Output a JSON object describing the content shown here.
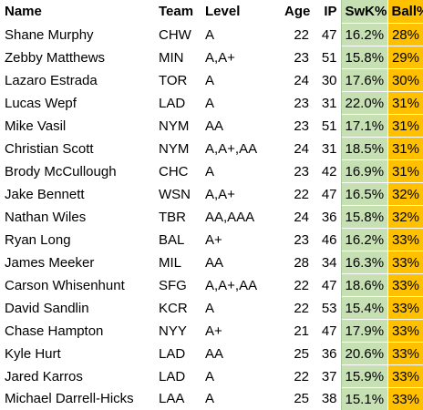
{
  "headers": [
    "Name",
    "Team",
    "Level",
    "Age",
    "IP",
    "SwK%",
    "Ball%"
  ],
  "rows": [
    {
      "name": "Shane Murphy",
      "team": "CHW",
      "level": "A",
      "age": "22",
      "ip": "47",
      "swk": "16.2%",
      "ball": "28%"
    },
    {
      "name": "Zebby Matthews",
      "team": "MIN",
      "level": "A,A+",
      "age": "23",
      "ip": "51",
      "swk": "15.8%",
      "ball": "29%"
    },
    {
      "name": "Lazaro Estrada",
      "team": "TOR",
      "level": "A",
      "age": "24",
      "ip": "30",
      "swk": "17.6%",
      "ball": "30%"
    },
    {
      "name": "Lucas Wepf",
      "team": "LAD",
      "level": "A",
      "age": "23",
      "ip": "31",
      "swk": "22.0%",
      "ball": "31%"
    },
    {
      "name": "Mike Vasil",
      "team": "NYM",
      "level": "AA",
      "age": "23",
      "ip": "51",
      "swk": "17.1%",
      "ball": "31%"
    },
    {
      "name": "Christian Scott",
      "team": "NYM",
      "level": "A,A+,AA",
      "age": "24",
      "ip": "31",
      "swk": "18.5%",
      "ball": "31%"
    },
    {
      "name": "Brody McCullough",
      "team": "CHC",
      "level": "A",
      "age": "23",
      "ip": "42",
      "swk": "16.9%",
      "ball": "31%"
    },
    {
      "name": "Jake Bennett",
      "team": "WSN",
      "level": "A,A+",
      "age": "22",
      "ip": "47",
      "swk": "16.5%",
      "ball": "32%"
    },
    {
      "name": "Nathan Wiles",
      "team": "TBR",
      "level": "AA,AAA",
      "age": "24",
      "ip": "36",
      "swk": "15.8%",
      "ball": "32%"
    },
    {
      "name": "Ryan Long",
      "team": "BAL",
      "level": "A+",
      "age": "23",
      "ip": "46",
      "swk": "16.2%",
      "ball": "33%"
    },
    {
      "name": "James Meeker",
      "team": "MIL",
      "level": "AA",
      "age": "28",
      "ip": "34",
      "swk": "16.3%",
      "ball": "33%"
    },
    {
      "name": "Carson Whisenhunt",
      "team": "SFG",
      "level": "A,A+,AA",
      "age": "22",
      "ip": "47",
      "swk": "18.6%",
      "ball": "33%"
    },
    {
      "name": "David Sandlin",
      "team": "KCR",
      "level": "A",
      "age": "22",
      "ip": "53",
      "swk": "15.4%",
      "ball": "33%"
    },
    {
      "name": "Chase Hampton",
      "team": "NYY",
      "level": "A+",
      "age": "21",
      "ip": "47",
      "swk": "17.9%",
      "ball": "33%"
    },
    {
      "name": "Kyle Hurt",
      "team": "LAD",
      "level": "AA",
      "age": "25",
      "ip": "36",
      "swk": "20.6%",
      "ball": "33%"
    },
    {
      "name": "Jared Karros",
      "team": "LAD",
      "level": "A",
      "age": "22",
      "ip": "37",
      "swk": "15.9%",
      "ball": "33%"
    },
    {
      "name": "Michael Darrell-Hicks",
      "team": "LAA",
      "level": "A",
      "age": "25",
      "ip": "38",
      "swk": "15.1%",
      "ball": "33%"
    }
  ],
  "colors": {
    "swk_fill": "#c6e0b4",
    "ball_fill": "#ffc000"
  }
}
